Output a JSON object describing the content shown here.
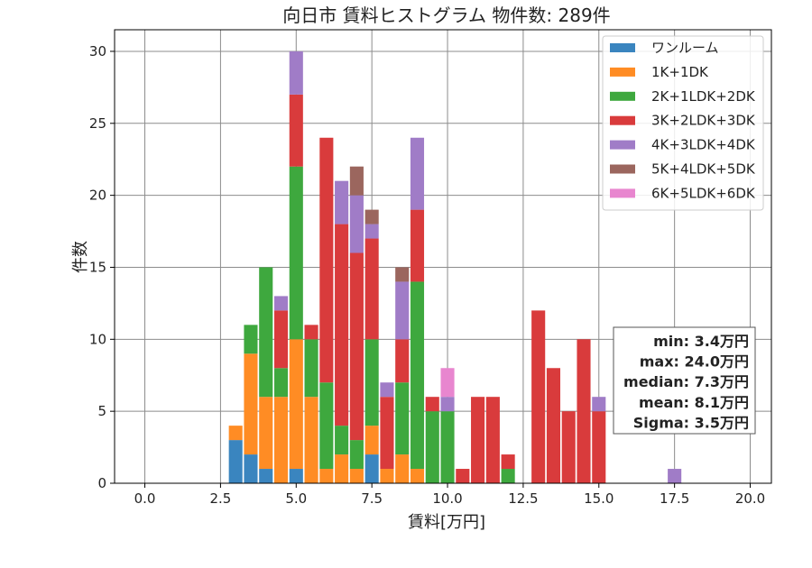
{
  "colors": {
    "ワンルーム": "#3a85bf",
    "1K+1DK": "#ff8c24",
    "2K+1LDK+2DK": "#3ea83e",
    "3K+2LDK+3DK": "#d93b3c",
    "4K+3LDK+4DK": "#a07cc7",
    "5K+4LDK+5DK": "#9b665e",
    "6K+5LDK+6DK": "#e886cf"
  },
  "chart_data": {
    "type": "bar",
    "stacked": true,
    "title": "向日市 賃料ヒストグラム 物件数: 289件",
    "xlabel": "賃料[万円]",
    "ylabel": "件数",
    "xlim": [
      -1,
      20.7
    ],
    "ylim": [
      0,
      31.5
    ],
    "grid": true,
    "legend_position": "top-right",
    "bin_width": 0.5,
    "x_ticks": [
      "0.0",
      "2.5",
      "5.0",
      "7.5",
      "10.0",
      "12.5",
      "15.0",
      "17.5",
      "20.0"
    ],
    "x_tick_values": [
      0,
      2.5,
      5,
      7.5,
      10,
      12.5,
      15,
      17.5,
      20
    ],
    "y_ticks": [
      "0",
      "5",
      "10",
      "15",
      "20",
      "25",
      "30"
    ],
    "y_tick_values": [
      0,
      5,
      10,
      15,
      20,
      25,
      30
    ],
    "x": [
      3,
      3.5,
      4,
      4.5,
      5,
      5.5,
      6,
      6.5,
      7,
      7.5,
      8,
      8.5,
      9,
      9.5,
      10,
      10.5,
      11,
      11.5,
      12,
      13,
      13.5,
      14,
      14.5,
      15,
      17.5
    ],
    "series": [
      {
        "name": "ワンルーム",
        "values": [
          3,
          2,
          1,
          0,
          1,
          0,
          0,
          0,
          0,
          2,
          0,
          0,
          0,
          0,
          0,
          0,
          0,
          0,
          0,
          0,
          0,
          0,
          0,
          0,
          0
        ]
      },
      {
        "name": "1K+1DK",
        "values": [
          1,
          7,
          5,
          6,
          9,
          6,
          1,
          2,
          1,
          2,
          1,
          2,
          1,
          0,
          0,
          0,
          0,
          0,
          0,
          0,
          0,
          0,
          0,
          0,
          0
        ]
      },
      {
        "name": "2K+1LDK+2DK",
        "values": [
          0,
          2,
          9,
          2,
          12,
          4,
          6,
          2,
          2,
          6,
          0,
          5,
          13,
          5,
          5,
          0,
          0,
          0,
          1,
          0,
          0,
          0,
          0,
          0,
          0
        ]
      },
      {
        "name": "3K+2LDK+3DK",
        "values": [
          0,
          0,
          0,
          4,
          5,
          1,
          17,
          14,
          13,
          7,
          5,
          3,
          5,
          1,
          0,
          1,
          6,
          6,
          1,
          12,
          8,
          5,
          10,
          5,
          0
        ]
      },
      {
        "name": "4K+3LDK+4DK",
        "values": [
          0,
          0,
          0,
          1,
          3,
          0,
          0,
          3,
          4,
          1,
          1,
          4,
          5,
          0,
          1,
          0,
          0,
          0,
          0,
          0,
          0,
          0,
          0,
          1,
          1
        ]
      },
      {
        "name": "5K+4LDK+5DK",
        "values": [
          0,
          0,
          0,
          0,
          0,
          0,
          0,
          0,
          2,
          1,
          0,
          1,
          0,
          0,
          0,
          0,
          0,
          0,
          0,
          0,
          0,
          0,
          0,
          0,
          0
        ]
      },
      {
        "name": "6K+5LDK+6DK",
        "values": [
          0,
          0,
          0,
          0,
          0,
          0,
          0,
          0,
          0,
          0,
          0,
          0,
          0,
          0,
          2,
          0,
          0,
          0,
          0,
          0,
          0,
          0,
          0,
          0,
          0
        ]
      }
    ],
    "stats_box": {
      "lines": [
        "min: 3.4万円",
        "max: 24.0万円",
        "median: 7.3万円",
        "mean: 8.1万円",
        "Sigma: 3.5万円"
      ]
    }
  }
}
